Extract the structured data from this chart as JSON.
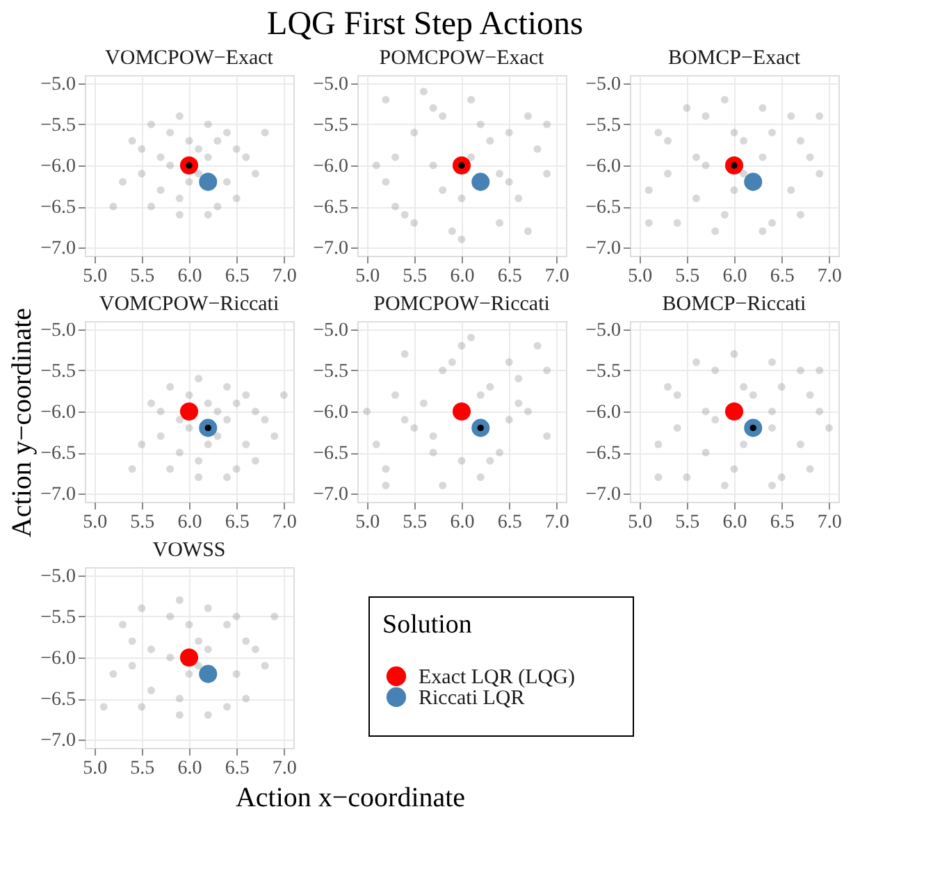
{
  "chart_data": [
    {
      "type": "other",
      "title": "LQG First Step Actions",
      "xlabel": "Action x−coordinate",
      "ylabel": "Action y−coordinate"
    },
    {
      "type": "scatter",
      "title": "VOMCPOW−Exact",
      "xlim": [
        4.9,
        7.1
      ],
      "ylim": [
        -7.1,
        -4.9
      ],
      "xticks": [
        {
          "value": 5,
          "label": "5.0"
        },
        {
          "value": 5.5,
          "label": "5.5"
        },
        {
          "value": 6,
          "label": "6.0"
        },
        {
          "value": 6.5,
          "label": "6.5"
        },
        {
          "value": 7,
          "label": "7.0"
        }
      ],
      "yticks": [
        {
          "value": -7,
          "label": "−7.0"
        },
        {
          "value": -6.5,
          "label": "−6.5"
        },
        {
          "value": -6,
          "label": "−6.0"
        },
        {
          "value": -5.5,
          "label": "−5.5"
        },
        {
          "value": -5,
          "label": "−5.0"
        }
      ],
      "grid": true,
      "marker": "circle",
      "legend": "bottom right",
      "legend_title": "Solution",
      "series": [
        {
          "color": "#7f7f7f",
          "x": [
            6.1,
            5.7,
            6.4,
            5.9,
            6.2,
            5.5,
            6.3,
            5.8,
            6.6,
            5.6,
            6.0,
            6.5,
            5.4,
            6.2,
            5.7,
            6.4,
            5.9,
            6.7,
            5.3,
            6.1,
            5.8,
            6.3,
            5.6,
            6.0,
            6.5,
            5.5,
            6.2,
            5.9,
            6.8,
            5.2
          ],
          "values": [
            -5.8,
            -5.9,
            -6.2,
            -6.4,
            -5.5,
            -6.1,
            -5.7,
            -5.6,
            -5.9,
            -6.5,
            -6.2,
            -6.4,
            -5.7,
            -6.6,
            -6.3,
            -5.6,
            -5.4,
            -6.1,
            -6.2,
            -6.1,
            -6.0,
            -6.5,
            -5.5,
            -5.7,
            -5.8,
            -5.8,
            -5.9,
            -6.6,
            -5.6,
            -6.5
          ]
        },
        {
          "name": "Exact LQR (LQG)",
          "color": "#ff0000",
          "x": [
            6.0
          ],
          "values": [
            -6.0
          ]
        },
        {
          "name": "Riccati LQR",
          "color": "#4682b4",
          "x": [
            6.2
          ],
          "values": [
            -6.2
          ]
        },
        {
          "color": "#000000",
          "x": [
            6.0
          ],
          "values": [
            -6.0
          ]
        }
      ]
    },
    {
      "type": "scatter",
      "title": "POMCPOW−Exact",
      "xlim": [
        4.9,
        7.1
      ],
      "ylim": [
        -7.1,
        -4.9
      ],
      "xticks": [
        {
          "value": 5,
          "label": "5.0"
        },
        {
          "value": 5.5,
          "label": "5.5"
        },
        {
          "value": 6,
          "label": "6.0"
        },
        {
          "value": 6.5,
          "label": "6.5"
        },
        {
          "value": 7,
          "label": "7.0"
        }
      ],
      "yticks": [
        {
          "value": -7,
          "label": "−7.0"
        },
        {
          "value": -6.5,
          "label": "−6.5"
        },
        {
          "value": -6,
          "label": "−6.0"
        },
        {
          "value": -5.5,
          "label": "−5.5"
        },
        {
          "value": -5,
          "label": "−5.0"
        }
      ],
      "grid": true,
      "marker": "circle",
      "series": [
        {
          "color": "#7f7f7f",
          "x": [
            5.2,
            5.5,
            5.8,
            6.1,
            6.4,
            6.7,
            6.9,
            5.3,
            5.6,
            5.9,
            6.2,
            6.5,
            6.8,
            5.1,
            5.4,
            5.7,
            6.0,
            6.3,
            6.6,
            6.9,
            5.2,
            5.5,
            5.8,
            6.1,
            6.4,
            6.7,
            5.3,
            6.0,
            6.5,
            5.7
          ],
          "values": [
            -5.2,
            -5.6,
            -6.3,
            -5.9,
            -6.7,
            -5.4,
            -6.1,
            -6.5,
            -5.1,
            -6.8,
            -5.5,
            -6.2,
            -5.8,
            -6.0,
            -6.6,
            -5.3,
            -6.9,
            -5.7,
            -6.4,
            -5.5,
            -6.2,
            -6.7,
            -5.4,
            -5.2,
            -6.1,
            -6.8,
            -5.9,
            -6.4,
            -5.6,
            -6.0
          ]
        },
        {
          "color": "#ff0000",
          "x": [
            6.0
          ],
          "values": [
            -6.0
          ]
        },
        {
          "color": "#4682b4",
          "x": [
            6.2
          ],
          "values": [
            -6.2
          ]
        },
        {
          "color": "#000000",
          "x": [
            6.0
          ],
          "values": [
            -6.0
          ]
        }
      ]
    },
    {
      "type": "scatter",
      "title": "BOMCP−Exact",
      "xlim": [
        4.9,
        7.1
      ],
      "ylim": [
        -7.1,
        -4.9
      ],
      "xticks": [
        {
          "value": 5,
          "label": "5.0"
        },
        {
          "value": 5.5,
          "label": "5.5"
        },
        {
          "value": 6,
          "label": "6.0"
        },
        {
          "value": 6.5,
          "label": "6.5"
        },
        {
          "value": 7,
          "label": "7.0"
        }
      ],
      "yticks": [
        {
          "value": -7,
          "label": "−7.0"
        },
        {
          "value": -6.5,
          "label": "−6.5"
        },
        {
          "value": -6,
          "label": "−6.0"
        },
        {
          "value": -5.5,
          "label": "−5.5"
        },
        {
          "value": -5,
          "label": "−5.0"
        }
      ],
      "grid": true,
      "marker": "circle",
      "series": [
        {
          "color": "#7f7f7f",
          "x": [
            6.1,
            5.6,
            6.6,
            5.9,
            6.3,
            5.3,
            6.4,
            5.7,
            6.8,
            5.4,
            6.0,
            6.7,
            5.2,
            6.3,
            5.6,
            6.6,
            5.9,
            6.9,
            5.1,
            6.1,
            5.7,
            6.4,
            5.5,
            6.0,
            6.7,
            5.3,
            6.3,
            5.8,
            6.9,
            5.1
          ],
          "values": [
            -5.7,
            -5.9,
            -6.3,
            -6.6,
            -5.3,
            -6.1,
            -5.6,
            -5.4,
            -5.9,
            -6.7,
            -6.3,
            -6.6,
            -5.6,
            -6.8,
            -6.4,
            -5.4,
            -5.2,
            -6.1,
            -6.3,
            -6.1,
            -6.0,
            -6.7,
            -5.3,
            -5.6,
            -5.7,
            -5.7,
            -5.9,
            -6.8,
            -5.4,
            -6.7
          ]
        },
        {
          "color": "#ff0000",
          "x": [
            6.0
          ],
          "values": [
            -6.0
          ]
        },
        {
          "color": "#4682b4",
          "x": [
            6.2
          ],
          "values": [
            -6.2
          ]
        },
        {
          "color": "#000000",
          "x": [
            6.0
          ],
          "values": [
            -6.0
          ]
        }
      ]
    },
    {
      "type": "scatter",
      "title": "VOMCPOW−Riccati",
      "xlim": [
        4.9,
        7.1
      ],
      "ylim": [
        -7.1,
        -4.9
      ],
      "xticks": [
        {
          "value": 5,
          "label": "5.0"
        },
        {
          "value": 5.5,
          "label": "5.5"
        },
        {
          "value": 6,
          "label": "6.0"
        },
        {
          "value": 6.5,
          "label": "6.5"
        },
        {
          "value": 7,
          "label": "7.0"
        }
      ],
      "yticks": [
        {
          "value": -7,
          "label": "−7.0"
        },
        {
          "value": -6.5,
          "label": "−6.5"
        },
        {
          "value": -6,
          "label": "−6.0"
        },
        {
          "value": -5.5,
          "label": "−5.5"
        },
        {
          "value": -5,
          "label": "−5.0"
        }
      ],
      "grid": true,
      "marker": "circle",
      "series": [
        {
          "color": "#7f7f7f",
          "x": [
            6.3,
            5.9,
            6.6,
            6.1,
            6.4,
            5.7,
            6.5,
            6.0,
            6.8,
            5.8,
            6.2,
            6.7,
            5.6,
            6.4,
            5.9,
            6.6,
            6.1,
            6.9,
            5.5,
            6.3,
            6.0,
            6.5,
            5.8,
            6.2,
            6.7,
            5.7,
            6.4,
            6.1,
            7.0,
            5.4
          ],
          "values": [
            -6.0,
            -6.1,
            -6.4,
            -6.6,
            -5.7,
            -6.3,
            -5.9,
            -5.8,
            -6.1,
            -6.7,
            -6.4,
            -6.6,
            -5.9,
            -6.8,
            -6.5,
            -5.8,
            -5.6,
            -6.3,
            -6.4,
            -6.3,
            -6.2,
            -6.7,
            -5.7,
            -5.9,
            -6.0,
            -6.0,
            -6.1,
            -6.8,
            -5.8,
            -6.7
          ]
        },
        {
          "color": "#ff0000",
          "x": [
            6.0
          ],
          "values": [
            -6.0
          ]
        },
        {
          "color": "#4682b4",
          "x": [
            6.2
          ],
          "values": [
            -6.2
          ]
        },
        {
          "color": "#000000",
          "x": [
            6.2
          ],
          "values": [
            -6.2
          ]
        }
      ]
    },
    {
      "type": "scatter",
      "title": "POMCPOW−Riccati",
      "xlim": [
        4.9,
        7.1
      ],
      "ylim": [
        -7.1,
        -4.9
      ],
      "xticks": [
        {
          "value": 5,
          "label": "5.0"
        },
        {
          "value": 5.5,
          "label": "5.5"
        },
        {
          "value": 6,
          "label": "6.0"
        },
        {
          "value": 6.5,
          "label": "6.5"
        },
        {
          "value": 7,
          "label": "7.0"
        }
      ],
      "yticks": [
        {
          "value": -7,
          "label": "−7.0"
        },
        {
          "value": -6.5,
          "label": "−6.5"
        },
        {
          "value": -6,
          "label": "−6.0"
        },
        {
          "value": -5.5,
          "label": "−5.5"
        },
        {
          "value": -5,
          "label": "−5.0"
        }
      ],
      "grid": true,
      "marker": "circle",
      "series": [
        {
          "color": "#7f7f7f",
          "x": [
            5.4,
            5.1,
            6.3,
            5.8,
            6.8,
            6.0,
            5.6,
            6.5,
            5.2,
            6.9,
            5.9,
            6.2,
            5.5,
            6.7,
            5.3,
            6.4,
            6.1,
            5.7,
            6.6,
            5.0,
            6.3,
            5.8,
            6.9,
            5.4,
            6.0,
            6.6,
            5.2,
            6.5,
            5.7,
            6.2
          ],
          "values": [
            -5.3,
            -6.4,
            -5.7,
            -6.9,
            -5.2,
            -6.6,
            -5.9,
            -6.1,
            -6.7,
            -5.5,
            -5.4,
            -6.8,
            -6.2,
            -6.0,
            -5.8,
            -6.5,
            -5.1,
            -6.3,
            -5.6,
            -6.0,
            -6.6,
            -5.5,
            -6.3,
            -6.1,
            -5.2,
            -5.9,
            -6.9,
            -5.4,
            -6.5,
            -5.8
          ]
        },
        {
          "color": "#ff0000",
          "x": [
            6.0
          ],
          "values": [
            -6.0
          ]
        },
        {
          "color": "#4682b4",
          "x": [
            6.2
          ],
          "values": [
            -6.2
          ]
        },
        {
          "color": "#000000",
          "x": [
            6.2
          ],
          "values": [
            -6.2
          ]
        }
      ]
    },
    {
      "type": "scatter",
      "title": "BOMCP−Riccati",
      "xlim": [
        4.9,
        7.1
      ],
      "ylim": [
        -7.1,
        -4.9
      ],
      "xticks": [
        {
          "value": 5,
          "label": "5.0"
        },
        {
          "value": 5.5,
          "label": "5.5"
        },
        {
          "value": 6,
          "label": "6.0"
        },
        {
          "value": 6.5,
          "label": "6.5"
        },
        {
          "value": 7,
          "label": "7.0"
        }
      ],
      "yticks": [
        {
          "value": -7,
          "label": "−7.0"
        },
        {
          "value": -6.5,
          "label": "−6.5"
        },
        {
          "value": -6,
          "label": "−6.0"
        },
        {
          "value": -5.5,
          "label": "−5.5"
        },
        {
          "value": -5,
          "label": "−5.0"
        }
      ],
      "grid": true,
      "marker": "circle",
      "series": [
        {
          "color": "#7f7f7f",
          "x": [
            6.2,
            5.7,
            6.7,
            6.0,
            6.4,
            5.4,
            6.5,
            5.8,
            6.9,
            5.5,
            6.1,
            6.8,
            5.3,
            6.4,
            5.7,
            6.7,
            6.0,
            7.0,
            5.2,
            6.4,
            5.8,
            6.5,
            5.6,
            6.1,
            6.8,
            5.4,
            6.4,
            5.9,
            6.9,
            5.2
          ],
          "values": [
            -5.8,
            -6.0,
            -6.4,
            -6.7,
            -5.4,
            -6.2,
            -5.7,
            -5.5,
            -6.0,
            -6.8,
            -6.4,
            -6.7,
            -5.7,
            -6.9,
            -6.5,
            -5.5,
            -5.3,
            -6.2,
            -6.4,
            -6.2,
            -6.1,
            -6.8,
            -5.4,
            -5.7,
            -5.8,
            -5.8,
            -6.0,
            -6.9,
            -5.5,
            -6.8
          ]
        },
        {
          "color": "#ff0000",
          "x": [
            6.0
          ],
          "values": [
            -6.0
          ]
        },
        {
          "color": "#4682b4",
          "x": [
            6.2
          ],
          "values": [
            -6.2
          ]
        },
        {
          "color": "#000000",
          "x": [
            6.2
          ],
          "values": [
            -6.2
          ]
        }
      ]
    },
    {
      "type": "scatter",
      "title": "VOWSS",
      "xlim": [
        4.9,
        7.1
      ],
      "ylim": [
        -7.1,
        -4.9
      ],
      "xticks": [
        {
          "value": 5,
          "label": "5.0"
        },
        {
          "value": 5.5,
          "label": "5.5"
        },
        {
          "value": 6,
          "label": "6.0"
        },
        {
          "value": 6.5,
          "label": "6.5"
        },
        {
          "value": 7,
          "label": "7.0"
        }
      ],
      "yticks": [
        {
          "value": -7,
          "label": "−7.0"
        },
        {
          "value": -6.5,
          "label": "−6.5"
        },
        {
          "value": -6,
          "label": "−6.0"
        },
        {
          "value": -5.5,
          "label": "−5.5"
        },
        {
          "value": -5,
          "label": "−5.0"
        }
      ],
      "grid": true,
      "marker": "circle",
      "series": [
        {
          "color": "#7f7f7f",
          "x": [
            6.1,
            5.6,
            6.5,
            5.9,
            6.2,
            5.4,
            6.4,
            5.8,
            6.7,
            5.5,
            6.0,
            6.6,
            5.3,
            6.2,
            5.6,
            6.5,
            5.9,
            6.8,
            5.2,
            6.1,
            5.8,
            6.4,
            5.5,
            6.0,
            6.6,
            5.4,
            6.2,
            5.9,
            6.9,
            5.1
          ],
          "values": [
            -5.8,
            -5.9,
            -6.2,
            -6.5,
            -5.4,
            -6.1,
            -5.6,
            -5.5,
            -5.9,
            -6.6,
            -6.2,
            -6.5,
            -5.6,
            -6.7,
            -6.4,
            -5.5,
            -5.3,
            -6.1,
            -6.2,
            -6.1,
            -6.0,
            -6.6,
            -5.4,
            -5.6,
            -5.8,
            -5.8,
            -5.9,
            -6.7,
            -5.5,
            -6.6
          ]
        },
        {
          "color": "#ff0000",
          "x": [
            6.0
          ],
          "values": [
            -6.0
          ]
        },
        {
          "color": "#4682b4",
          "x": [
            6.2
          ],
          "values": [
            -6.2
          ]
        }
      ]
    }
  ]
}
